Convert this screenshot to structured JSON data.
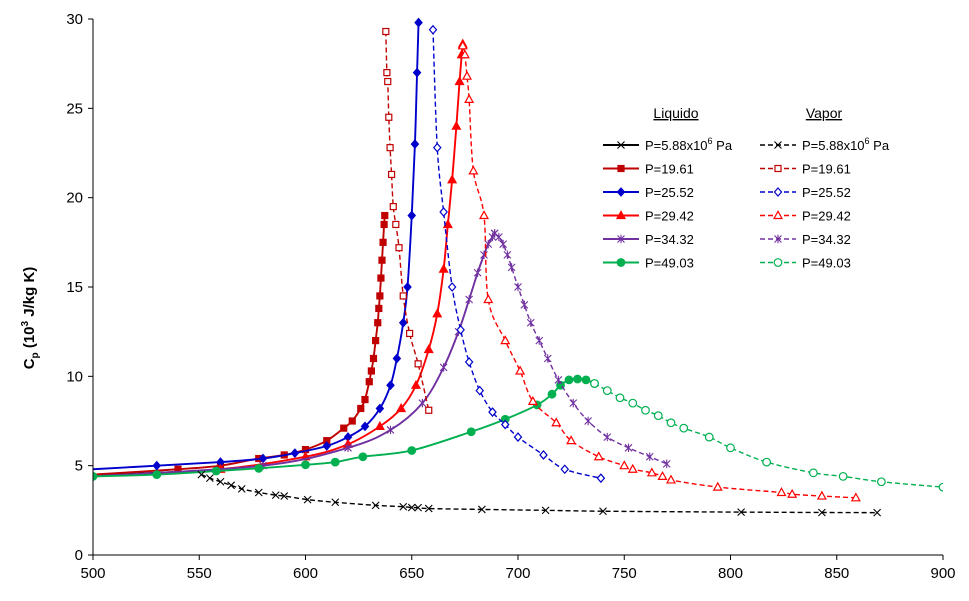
{
  "chart_data": {
    "type": "line",
    "title": "",
    "ylabel": "C",
    "ylabel_sub": "p",
    "ylabel_tail": " (10",
    "ylabel_sup": "3",
    "ylabel_end": " J/kg K)",
    "xlabel": "",
    "xlim": [
      500,
      900
    ],
    "ylim": [
      0,
      30
    ],
    "xticks": [
      500,
      550,
      600,
      650,
      700,
      750,
      800,
      850,
      900
    ],
    "yticks": [
      0,
      5,
      10,
      15,
      20,
      25,
      30
    ],
    "grid": false,
    "legend_headers": {
      "liquid": "Liquido",
      "vapor": "Vapor"
    },
    "legend_first_label": "P=5.88x10",
    "legend_first_sup": "6",
    "legend_first_unit": " Pa",
    "series": [
      {
        "phase": "liquid",
        "label": "P=5.88x10^6 Pa",
        "color": "#000000",
        "marker": "x",
        "x": [
          500,
          510,
          520,
          530,
          540,
          550,
          555
        ],
        "y": [
          4.45,
          4.5,
          4.55,
          4.6,
          4.65,
          4.7,
          4.72
        ]
      },
      {
        "phase": "liquid",
        "label": "P=19.61",
        "color": "#c00000",
        "marker": "square",
        "x": [
          500,
          540,
          560,
          578,
          590,
          600,
          610,
          618,
          622,
          626,
          628,
          630,
          631,
          632,
          633,
          634,
          634.5,
          635,
          635.5,
          636,
          636.5,
          637,
          637.3
        ],
        "y": [
          4.5,
          4.8,
          5.0,
          5.4,
          5.6,
          5.9,
          6.4,
          7.1,
          7.5,
          8.2,
          8.7,
          9.7,
          10.3,
          11.0,
          12.0,
          13.0,
          13.8,
          14.5,
          15.5,
          16.5,
          17.5,
          18.5,
          19.0
        ]
      },
      {
        "phase": "liquid",
        "label": "P=25.52",
        "color": "#0000cc",
        "marker": "diamond",
        "x": [
          500,
          530,
          560,
          580,
          595,
          610,
          620,
          628,
          635,
          640,
          643,
          646,
          648,
          650,
          651.5,
          652.5,
          653.2
        ],
        "y": [
          4.8,
          5.0,
          5.2,
          5.4,
          5.7,
          6.1,
          6.6,
          7.2,
          8.2,
          9.5,
          11.0,
          13.0,
          15.0,
          19.0,
          23.0,
          27.0,
          29.8
        ]
      },
      {
        "phase": "liquid",
        "label": "P=29.42",
        "color": "#ff0000",
        "marker": "triangle",
        "x": [
          500,
          560,
          600,
          620,
          635,
          645,
          652,
          658,
          662,
          665,
          667,
          669,
          671,
          672.5,
          673.5,
          674
        ],
        "y": [
          4.4,
          4.8,
          5.5,
          6.2,
          7.2,
          8.2,
          9.5,
          11.5,
          13.5,
          16.0,
          18.5,
          21.0,
          24.0,
          26.5,
          28.0,
          28.6
        ]
      },
      {
        "phase": "liquid",
        "label": "P=34.32",
        "color": "#7030a0",
        "marker": "star",
        "x": [
          500,
          580,
          620,
          640,
          655,
          665,
          672,
          677,
          681,
          684,
          686,
          688,
          689
        ],
        "y": [
          4.4,
          5.0,
          6.0,
          7.0,
          8.5,
          10.5,
          12.5,
          14.3,
          15.8,
          16.8,
          17.4,
          17.8,
          18.0
        ]
      },
      {
        "phase": "liquid",
        "label": "P=49.03",
        "color": "#00b050",
        "marker": "circle",
        "x": [
          500,
          530,
          558,
          578,
          600,
          614,
          627,
          650,
          678,
          694,
          709,
          716,
          720,
          724,
          728,
          732,
          736
        ],
        "y": [
          4.4,
          4.5,
          4.7,
          4.85,
          5.05,
          5.2,
          5.5,
          5.85,
          6.9,
          7.6,
          8.4,
          9.0,
          9.5,
          9.8,
          9.85,
          9.8,
          9.6
        ]
      },
      {
        "phase": "vapor",
        "label": "P=5.88x10^6 Pa",
        "color": "#000000",
        "marker": "x",
        "x": [
          551,
          555,
          560,
          565,
          570,
          578,
          586,
          590,
          601,
          614,
          633,
          646,
          650,
          653,
          658,
          683,
          713,
          740,
          805,
          843,
          869
        ],
        "y": [
          4.5,
          4.3,
          4.1,
          3.9,
          3.7,
          3.5,
          3.35,
          3.3,
          3.1,
          2.95,
          2.78,
          2.7,
          2.66,
          2.65,
          2.6,
          2.55,
          2.5,
          2.45,
          2.4,
          2.38,
          2.37
        ]
      },
      {
        "phase": "vapor",
        "label": "P=19.61",
        "color": "#c00000",
        "marker": "square",
        "x": [
          637.8,
          638.3,
          638.7,
          639.2,
          639.8,
          640.5,
          641.3,
          642.5,
          644,
          646,
          649,
          653,
          658
        ],
        "y": [
          29.3,
          27.0,
          26.5,
          24.5,
          22.8,
          21.3,
          19.5,
          18.5,
          17.2,
          14.5,
          12.4,
          10.7,
          8.1
        ]
      },
      {
        "phase": "vapor",
        "label": "P=25.52",
        "color": "#0000cc",
        "marker": "diamond",
        "x": [
          660,
          662,
          665,
          669,
          673,
          677,
          682,
          688,
          694,
          700,
          712,
          722,
          739
        ],
        "y": [
          29.4,
          22.8,
          19.2,
          15.0,
          12.6,
          10.8,
          9.2,
          8.0,
          7.3,
          6.6,
          5.6,
          4.8,
          4.3
        ]
      },
      {
        "phase": "vapor",
        "label": "P=29.42",
        "color": "#ff0000",
        "marker": "triangle",
        "x": [
          674,
          675,
          676,
          677,
          679,
          684,
          686,
          694,
          701,
          707,
          718,
          725,
          738,
          750,
          754,
          763,
          768,
          772,
          794,
          824,
          829,
          843,
          859
        ],
        "y": [
          28.5,
          28.0,
          26.8,
          25.5,
          21.5,
          19.0,
          14.3,
          12.0,
          10.3,
          8.6,
          7.4,
          6.4,
          5.5,
          5.0,
          4.8,
          4.6,
          4.4,
          4.2,
          3.8,
          3.5,
          3.4,
          3.3,
          3.2
        ]
      },
      {
        "phase": "vapor",
        "label": "P=34.32",
        "color": "#7030a0",
        "marker": "star",
        "x": [
          689,
          691,
          693,
          695,
          697,
          700,
          703,
          706,
          710,
          714,
          719,
          726,
          733,
          742,
          752,
          762,
          770
        ],
        "y": [
          18.0,
          17.8,
          17.4,
          16.8,
          16.1,
          15.0,
          14.0,
          13.0,
          12.0,
          11.0,
          9.8,
          8.5,
          7.5,
          6.6,
          6.0,
          5.5,
          5.1
        ]
      },
      {
        "phase": "vapor",
        "label": "P=49.03",
        "color": "#00b050",
        "marker": "circle",
        "x": [
          736,
          742,
          748,
          754,
          760,
          766,
          772,
          778,
          790,
          800,
          817,
          839,
          853,
          871,
          900
        ],
        "y": [
          9.6,
          9.2,
          8.8,
          8.5,
          8.1,
          7.8,
          7.4,
          7.1,
          6.6,
          6.0,
          5.2,
          4.6,
          4.4,
          4.1,
          3.8
        ]
      }
    ]
  }
}
